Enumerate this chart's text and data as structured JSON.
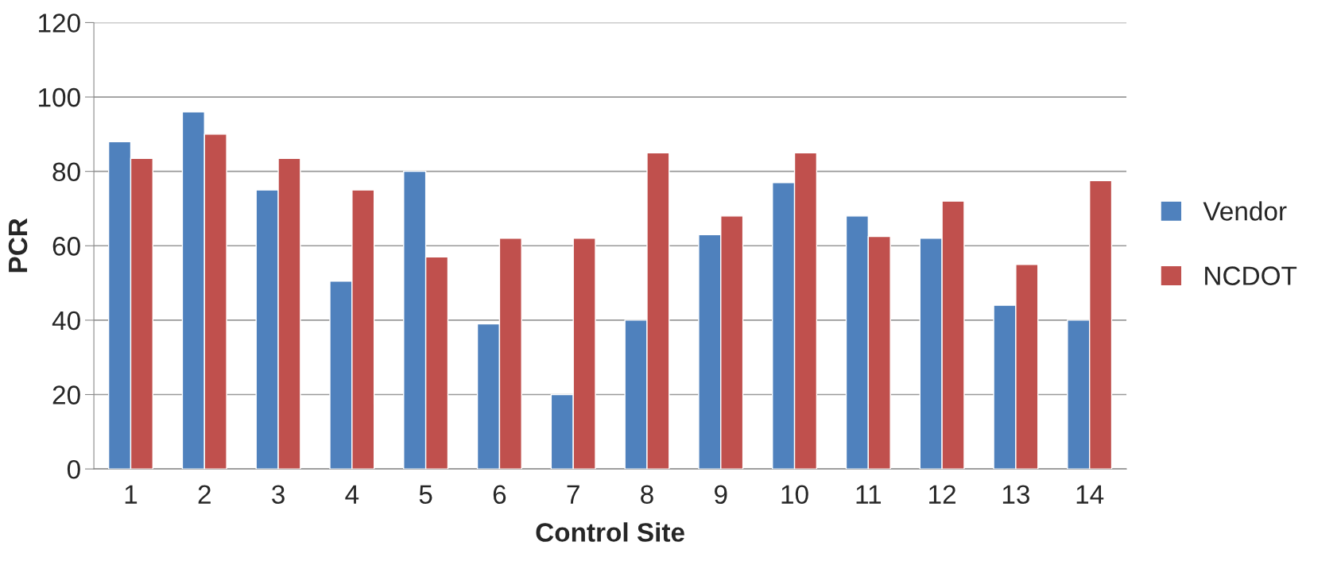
{
  "chart_data": {
    "type": "bar",
    "xlabel": "Control Site",
    "ylabel": "PCR",
    "categories": [
      "1",
      "2",
      "3",
      "4",
      "5",
      "6",
      "7",
      "8",
      "9",
      "10",
      "11",
      "12",
      "13",
      "14"
    ],
    "series": [
      {
        "name": "Vendor",
        "color": "#4f81bd",
        "values": [
          88,
          96,
          75,
          50.5,
          80,
          39,
          20,
          40,
          63,
          77,
          68,
          62,
          44,
          40
        ]
      },
      {
        "name": "NCDOT",
        "color": "#c0504d",
        "values": [
          83.5,
          90,
          83.5,
          75,
          57,
          62,
          62,
          85,
          68,
          85,
          62.5,
          72,
          55,
          77.5
        ]
      }
    ],
    "ylim": [
      0,
      120
    ],
    "yticks": [
      0,
      20,
      40,
      60,
      80,
      100,
      120
    ],
    "grid": "y",
    "legend": "right"
  }
}
